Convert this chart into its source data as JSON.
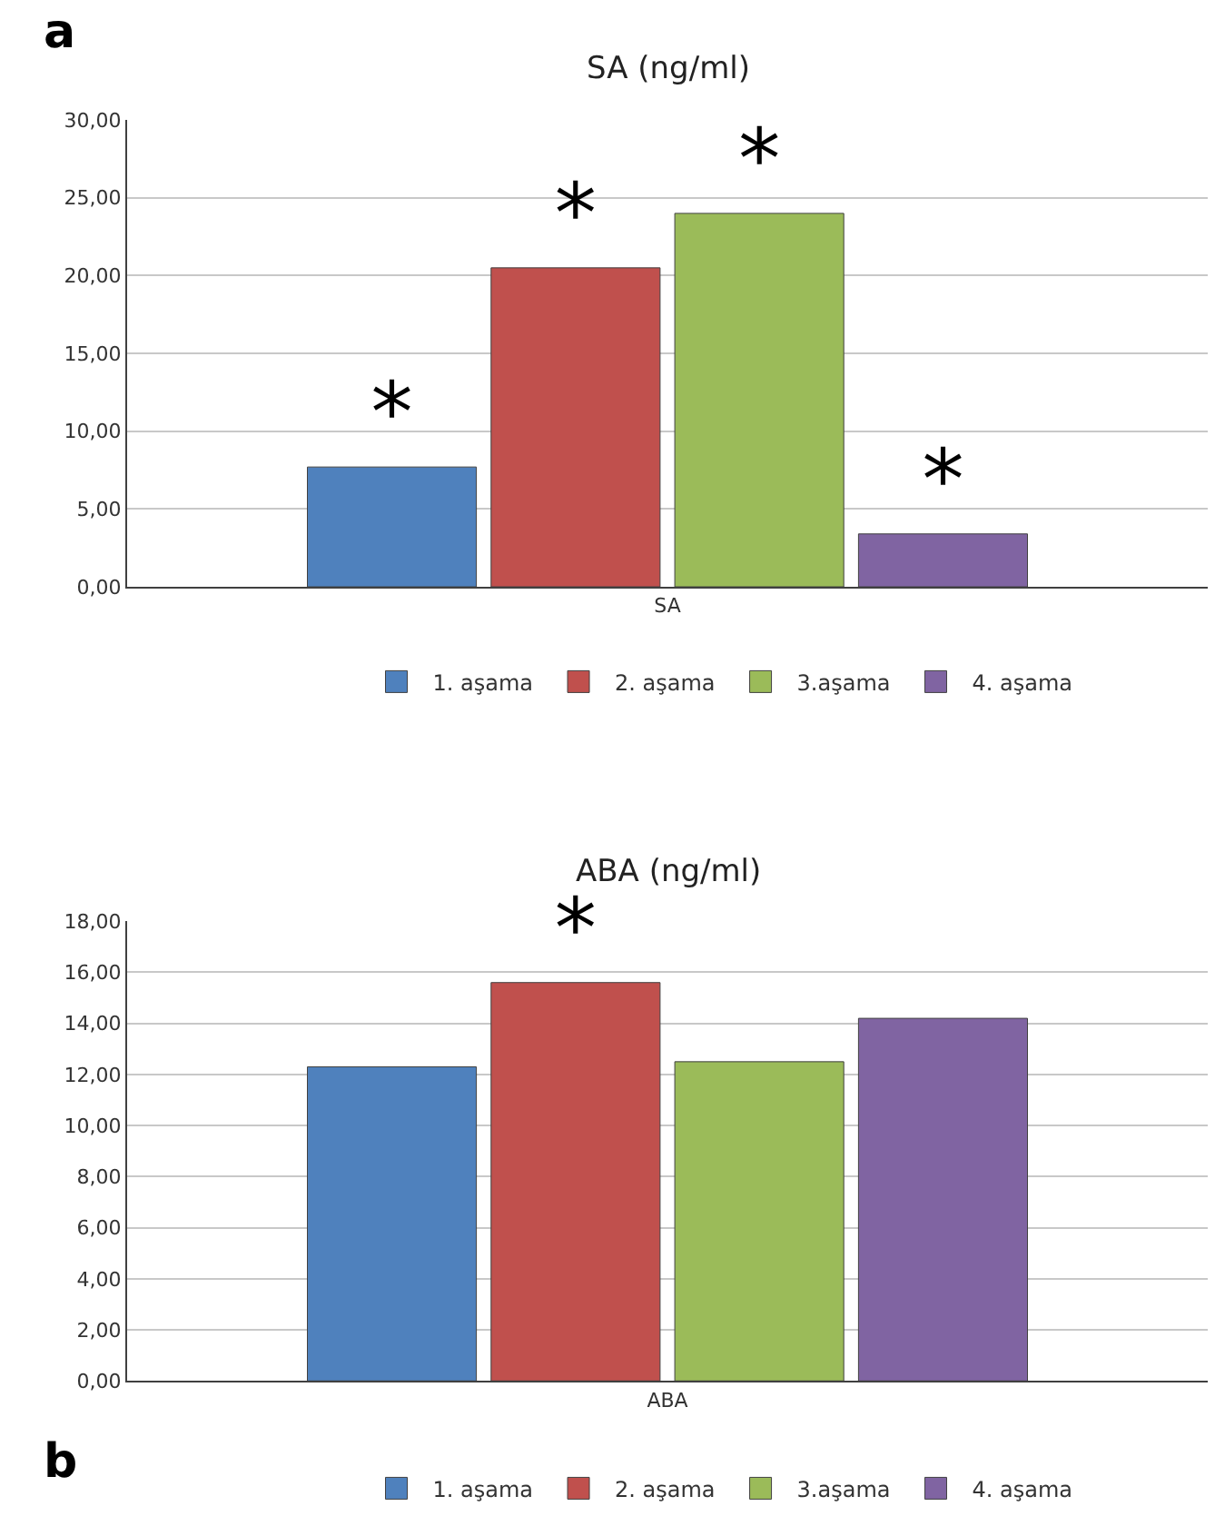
{
  "chart_data": [
    {
      "type": "bar",
      "title": "SA (ng/ml)",
      "categories": [
        "SA"
      ],
      "annotations": [
        "a"
      ],
      "series": [
        {
          "name": "1. aşama",
          "color": "#4f81bd",
          "values": [
            7.7
          ],
          "value_labels": [
            "*"
          ]
        },
        {
          "name": "2. aşama",
          "color": "#c0504d",
          "values": [
            20.5
          ],
          "value_labels": [
            "*"
          ]
        },
        {
          "name": "3.aşama",
          "color": "#9bbb59",
          "values": [
            24.0
          ],
          "value_labels": [
            "*"
          ]
        },
        {
          "name": "4. aşama",
          "color": "#8064a2",
          "values": [
            3.4
          ],
          "value_labels": [
            "*"
          ]
        }
      ],
      "ylim": [
        0,
        30
      ],
      "yticks": [
        {
          "value": 0,
          "label": "0,00"
        },
        {
          "value": 5,
          "label": "5,00"
        },
        {
          "value": 10,
          "label": "10,00"
        },
        {
          "value": 15,
          "label": "15,00"
        },
        {
          "value": 20,
          "label": "20,00"
        },
        {
          "value": 25,
          "label": "25,00"
        },
        {
          "value": 30,
          "label": "30,00"
        }
      ],
      "grid": "y",
      "legend": "bottom"
    },
    {
      "type": "bar",
      "title": "ABA (ng/ml)",
      "categories": [
        "ABA"
      ],
      "annotations": [
        "b"
      ],
      "series": [
        {
          "name": "1. aşama",
          "color": "#4f81bd",
          "values": [
            12.3
          ],
          "value_labels": [
            null
          ]
        },
        {
          "name": "2. aşama",
          "color": "#c0504d",
          "values": [
            15.6
          ],
          "value_labels": [
            "*"
          ]
        },
        {
          "name": "3.aşama",
          "color": "#9bbb59",
          "values": [
            12.5
          ],
          "value_labels": [
            null
          ]
        },
        {
          "name": "4. aşama",
          "color": "#8064a2",
          "values": [
            14.2
          ],
          "value_labels": [
            null
          ]
        }
      ],
      "ylim": [
        0,
        18
      ],
      "yticks": [
        {
          "value": 0,
          "label": "0,00"
        },
        {
          "value": 2,
          "label": "2,00"
        },
        {
          "value": 4,
          "label": "4,00"
        },
        {
          "value": 6,
          "label": "6,00"
        },
        {
          "value": 8,
          "label": "8,00"
        },
        {
          "value": 10,
          "label": "10,00"
        },
        {
          "value": 12,
          "label": "12,00"
        },
        {
          "value": 14,
          "label": "14,00"
        },
        {
          "value": 16,
          "label": "16,00"
        },
        {
          "value": 18,
          "label": "18,00"
        }
      ],
      "grid": "y",
      "legend": "bottom"
    }
  ]
}
